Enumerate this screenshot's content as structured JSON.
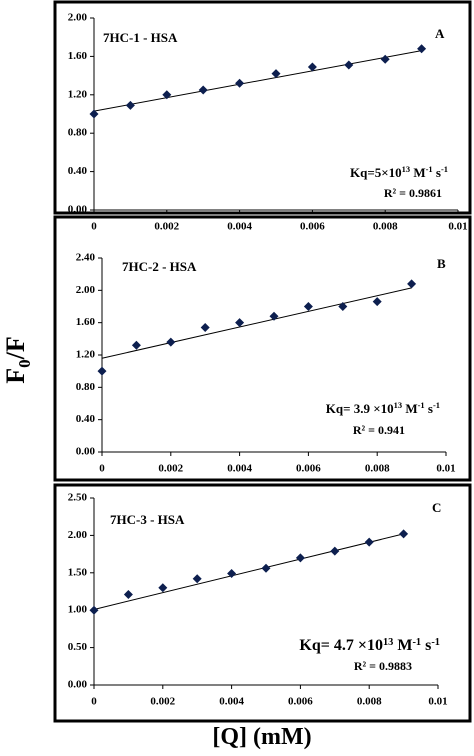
{
  "figure": {
    "y_label": [
      "F",
      "0",
      "/F"
    ],
    "x_label": "[Q] (mM)"
  },
  "chart_data": [
    {
      "type": "scatter",
      "panel": "A",
      "title": "7HC-1 - HSA",
      "annotation": [
        "Kq=5×10",
        "13",
        " M",
        "-1",
        " s",
        "-1"
      ],
      "r2": "R² = 0.9861",
      "x": [
        0,
        0.001,
        0.002,
        0.003,
        0.004,
        0.005,
        0.006,
        0.007,
        0.008,
        0.009
      ],
      "values": [
        1.0,
        1.09,
        1.2,
        1.25,
        1.32,
        1.42,
        1.49,
        1.51,
        1.57,
        1.68
      ],
      "trendline": {
        "x": [
          0,
          0.009
        ],
        "values": [
          1.03,
          1.66
        ]
      },
      "color": "#0d1f4f",
      "xlim": [
        0,
        0.01
      ],
      "xticks": [
        0,
        0.002,
        0.004,
        0.006,
        0.008,
        0.01
      ],
      "ylim": [
        0,
        2.0
      ],
      "yticks": [
        {
          "value": 0,
          "label": "0.00"
        },
        {
          "value": 0.4,
          "label": "0.40"
        },
        {
          "value": 0.8,
          "label": "0.80"
        },
        {
          "value": 1.2,
          "label": "1.20"
        },
        {
          "value": 1.6,
          "label": "1.60"
        },
        {
          "value": 2.0,
          "label": "2.00"
        }
      ]
    },
    {
      "type": "scatter",
      "panel": "B",
      "title": "7HC-2 - HSA",
      "annotation": [
        "Kq= 3.9 ×10",
        "13",
        " M",
        "-1",
        " s",
        "-1"
      ],
      "r2": "R² = 0.941",
      "x": [
        0,
        0.001,
        0.002,
        0.003,
        0.004,
        0.005,
        0.006,
        0.007,
        0.008,
        0.009
      ],
      "values": [
        1.0,
        1.32,
        1.36,
        1.54,
        1.6,
        1.68,
        1.8,
        1.8,
        1.86,
        2.08
      ],
      "trendline": {
        "x": [
          0,
          0.009
        ],
        "values": [
          1.16,
          2.03
        ]
      },
      "color": "#0d1f4f",
      "xlim": [
        0,
        0.01
      ],
      "xticks": [
        0,
        0.002,
        0.004,
        0.006,
        0.008,
        0.01
      ],
      "ylim": [
        0,
        2.4
      ],
      "yticks": [
        {
          "value": 0,
          "label": "0.00"
        },
        {
          "value": 0.4,
          "label": "0.40"
        },
        {
          "value": 0.8,
          "label": "0.80"
        },
        {
          "value": 1.2,
          "label": "1.20"
        },
        {
          "value": 1.6,
          "label": "1.60"
        },
        {
          "value": 2.0,
          "label": "2.00"
        },
        {
          "value": 2.4,
          "label": "2.40"
        }
      ]
    },
    {
      "type": "scatter",
      "panel": "C",
      "title": "7HC-3 - HSA",
      "annotation": [
        "Kq= 4.7 ×10",
        "13",
        " M",
        "-1",
        " s",
        "-1"
      ],
      "r2": "R² = 0.9883",
      "x": [
        0,
        0.001,
        0.002,
        0.003,
        0.004,
        0.005,
        0.006,
        0.007,
        0.008,
        0.009
      ],
      "values": [
        1.0,
        1.21,
        1.3,
        1.42,
        1.49,
        1.56,
        1.7,
        1.79,
        1.91,
        2.02
      ],
      "trendline": {
        "x": [
          0,
          0.009
        ],
        "values": [
          1.01,
          2.02
        ]
      },
      "color": "#0d1f4f",
      "xlim": [
        0,
        0.01
      ],
      "xticks": [
        0,
        0.002,
        0.004,
        0.006,
        0.008,
        0.01
      ],
      "ylim": [
        0,
        2.5
      ],
      "yticks": [
        {
          "value": 0,
          "label": "0.00"
        },
        {
          "value": 0.5,
          "label": "0.50"
        },
        {
          "value": 1.0,
          "label": "1.00"
        },
        {
          "value": 1.5,
          "label": "1.50"
        },
        {
          "value": 2.0,
          "label": "2.00"
        },
        {
          "value": 2.5,
          "label": "2.50"
        }
      ]
    }
  ]
}
